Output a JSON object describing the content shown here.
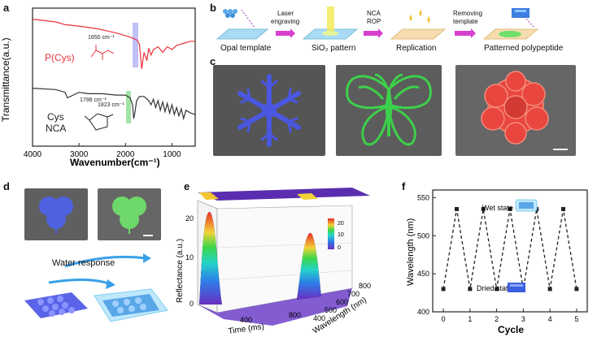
{
  "panels": {
    "a": "a",
    "b": "b",
    "c": "c",
    "d": "d",
    "e": "e",
    "f": "f"
  },
  "panel_a": {
    "series": [
      {
        "name": "P(Cys)",
        "color": "#e8333a"
      },
      {
        "name": "Cys NCA",
        "color": "#333333"
      }
    ],
    "pcys_label": "P(Cys)",
    "cys_label": "Cys",
    "nca_label": "NCA",
    "peak_1650": "1650 cm⁻¹",
    "peak_1798": "1798 cm⁻¹",
    "peak_1823": "1823 cm⁻¹",
    "ylabel": "Transmittance(a.u.)",
    "xlabel": "Wavenumber(cm⁻¹)",
    "xticks": [
      "4000",
      "3000",
      "2000",
      "1000"
    ],
    "highlight_colors": {
      "amide": "#8e8cf0",
      "nca": "#62d16a"
    }
  },
  "panel_b": {
    "steps": [
      "Opal template",
      "SiO₂  pattern",
      "Replication",
      "Patterned polypeptide"
    ],
    "arrows": [
      {
        "top": "Laser",
        "bottom": "engraving"
      },
      {
        "top": "NCA",
        "bottom": "ROP"
      },
      {
        "top": "Removing",
        "bottom": "template"
      }
    ],
    "arrow_color": "#d63fd0"
  },
  "panel_c": {
    "images": [
      {
        "name": "snowflake",
        "color": "#4a57e0"
      },
      {
        "name": "butterfly",
        "color": "#3cd14a"
      },
      {
        "name": "flower",
        "color": "#e8463e"
      }
    ]
  },
  "panel_d": {
    "caption": "Water response",
    "leaf_colors": {
      "dry": "#4e62e0",
      "wet": "#6fd86a"
    }
  },
  "panel_e": {
    "ylabel": "Reflectance (a.u.)",
    "xlabel": "Time (ms)",
    "zlabel": "Wavelength (nm)",
    "yticks": [
      "0",
      "10",
      "20"
    ],
    "xticks": [
      "400",
      "800"
    ],
    "zticks": [
      "400",
      "500",
      "600",
      "700",
      "800"
    ],
    "colorbar_ticks": [
      "20",
      "10",
      "0"
    ]
  },
  "panel_f": {
    "ylabel": "Wavelength (nm)",
    "xlabel": "Cycle",
    "wet_label": "Wet state",
    "dry_label": "Dried state",
    "yticks": [
      "400",
      "450",
      "500",
      "550"
    ],
    "xticks": [
      "0",
      "1",
      "2",
      "3",
      "4",
      "5"
    ]
  },
  "chart_data": [
    {
      "type": "line",
      "title": "",
      "xlabel": "Wavenumber(cm⁻¹)",
      "ylabel": "Transmittance(a.u.)",
      "xlim": [
        4000,
        500
      ],
      "annotations": [
        "1650 cm⁻¹",
        "1798 cm⁻¹",
        "1823 cm⁻¹"
      ],
      "series": [
        {
          "name": "P(Cys)",
          "x": [
            4000,
            3500,
            3300,
            3000,
            2600,
            2200,
            1900,
            1760,
            1700,
            1650,
            1600,
            1540,
            1500,
            1450,
            1400,
            1300,
            1200,
            1100,
            1000,
            900,
            800,
            700,
            600,
            500
          ],
          "y": [
            0.92,
            0.9,
            0.88,
            0.87,
            0.85,
            0.82,
            0.79,
            0.77,
            0.74,
            0.56,
            0.68,
            0.62,
            0.71,
            0.66,
            0.7,
            0.72,
            0.68,
            0.72,
            0.7,
            0.73,
            0.74,
            0.75,
            0.76,
            0.76
          ]
        },
        {
          "name": "Cys NCA",
          "x": [
            4000,
            3500,
            3300,
            3250,
            3000,
            2800,
            2500,
            2200,
            2000,
            1900,
            1850,
            1823,
            1798,
            1760,
            1700,
            1600,
            1500,
            1450,
            1400,
            1350,
            1300,
            1250,
            1200,
            1150,
            1100,
            1050,
            1000,
            950,
            900,
            850,
            800,
            750,
            700,
            600,
            500
          ],
          "y": [
            0.42,
            0.41,
            0.39,
            0.35,
            0.39,
            0.38,
            0.38,
            0.37,
            0.37,
            0.35,
            0.3,
            0.2,
            0.24,
            0.33,
            0.36,
            0.36,
            0.33,
            0.3,
            0.34,
            0.28,
            0.33,
            0.26,
            0.32,
            0.25,
            0.31,
            0.24,
            0.3,
            0.23,
            0.28,
            0.22,
            0.27,
            0.2,
            0.26,
            0.24,
            0.23
          ]
        }
      ]
    },
    {
      "type": "area",
      "title": "",
      "xlabel": "Time (ms)",
      "ylabel": "Reflectance (a.u.)",
      "zlabel": "Wavelength (nm)",
      "ylim": [
        0,
        25
      ],
      "colorbar": [
        0,
        20
      ],
      "series": [
        {
          "name": "",
          "x": [
            0,
            50,
            100,
            200,
            300,
            400,
            500,
            600,
            700,
            800
          ],
          "values": [
            2,
            23,
            14,
            4,
            2,
            1,
            1,
            1,
            1,
            1
          ]
        },
        {
          "name": "",
          "x": [
            0,
            100,
            200,
            300,
            400,
            500,
            600,
            700,
            800
          ],
          "values": [
            1,
            1,
            1,
            1,
            2,
            5,
            18,
            10,
            3
          ]
        }
      ]
    },
    {
      "type": "line",
      "title": "",
      "xlabel": "Cycle",
      "ylabel": "Wavelength (nm)",
      "ylim": [
        400,
        560
      ],
      "x": [
        0,
        0.5,
        1,
        1.5,
        2,
        2.5,
        3,
        3.5,
        4,
        4.5,
        5
      ],
      "series": [
        {
          "name": "",
          "values": [
            430,
            535,
            430,
            535,
            430,
            535,
            430,
            535,
            430,
            535,
            430
          ]
        }
      ]
    }
  ]
}
